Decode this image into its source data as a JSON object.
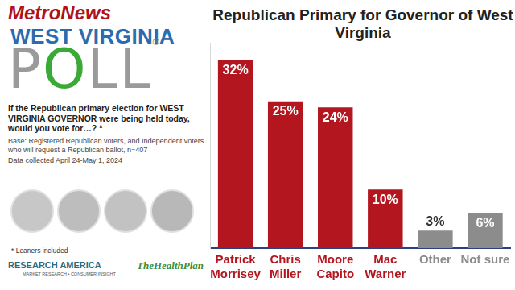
{
  "header": {
    "logo_name": "MetroNews",
    "logo_state": "WEST VIRGINIA",
    "logo_poll": "POLL",
    "logo_mark": "®",
    "question": "If the Republican primary election for WEST VIRGINIA GOVERNOR were being held today, would you vote for…? *",
    "base": "Base: Registered Republican voters, and Independent voters who will request a Republican ballot, n=407",
    "collected": "Data collected April 24-May 1, 2024",
    "note": "* Leaners included",
    "sponsor1": "RESEARCH AMERICA",
    "sponsor1_tagline": "MARKET RESEARCH • CONSUMER INSIGHT",
    "sponsor2": "TheHealthPlan"
  },
  "chart_data": {
    "type": "bar",
    "title": "Republican Primary for Governor of West Virginia",
    "categories": [
      "Patrick Morrisey",
      "Chris Miller",
      "Moore Capito",
      "Mac Warner",
      "Other",
      "Not sure"
    ],
    "values": [
      32,
      25,
      24,
      10,
      3,
      6
    ],
    "value_labels": [
      "32%",
      "25%",
      "24%",
      "10%",
      "3%",
      "6%"
    ],
    "colors": [
      "#b3161e",
      "#b3161e",
      "#b3161e",
      "#b3161e",
      "#8c8c8c",
      "#8c8c8c"
    ],
    "data_labels": true,
    "ylim": [
      0,
      35
    ],
    "grid": false,
    "tick_labels": "x"
  }
}
